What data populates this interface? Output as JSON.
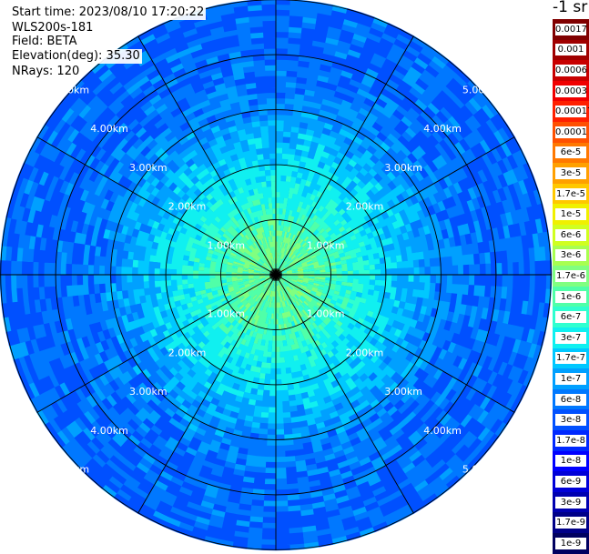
{
  "info": {
    "start_time": "Start time: 2023/08/10 17:20:22",
    "instrument": "WLS200s-181",
    "field": "Field: BETA",
    "elevation": "Elevation(deg): 35.30",
    "nrays": "NRays: 120"
  },
  "colorbar": {
    "units_label": "-1 sr",
    "labels": [
      "0.0017",
      "0.001",
      "0.0006",
      "0.0003",
      "0.00017",
      "0.0001",
      "6e-5",
      "3e-5",
      "1.7e-5",
      "1e-5",
      "6e-6",
      "3e-6",
      "1.7e-6",
      "1e-6",
      "6e-7",
      "3e-7",
      "1.7e-7",
      "1e-7",
      "6e-8",
      "3e-8",
      "1.7e-8",
      "1e-8",
      "6e-9",
      "3e-9",
      "1.7e-9",
      "1e-9"
    ],
    "colors": [
      "#800000",
      "#a00000",
      "#c80000",
      "#f00000",
      "#ff2000",
      "#ff5000",
      "#ff7800",
      "#ffa000",
      "#ffc800",
      "#f0f000",
      "#d0ff20",
      "#a8ff50",
      "#80ff80",
      "#50ffa8",
      "#30ffd0",
      "#10f0f0",
      "#00c8ff",
      "#00a0ff",
      "#0078ff",
      "#0050ff",
      "#0028ff",
      "#0000ff",
      "#0000d8",
      "#0000b0",
      "#000088",
      "#000060"
    ]
  },
  "chart_data": {
    "type": "heatmap",
    "projection": "polar",
    "range_unit": "km",
    "max_range_km": 5.0,
    "range_rings_km": [
      1,
      2,
      3,
      4,
      5
    ],
    "ring_labels": [
      "1.00km",
      "2.00km",
      "3.00km",
      "4.00km",
      "5.00km"
    ],
    "azimuth_spokes_deg": [
      0,
      30,
      60,
      90,
      120,
      150,
      180,
      210,
      240,
      270,
      300,
      330
    ],
    "nrays": 120,
    "typical_values_by_range_km": [
      {
        "range_km": 0.5,
        "value": "1.7e-6"
      },
      {
        "range_km": 1.0,
        "value": "1e-6"
      },
      {
        "range_km": 2.0,
        "value": "3e-7"
      },
      {
        "range_km": 3.0,
        "value": "1e-7"
      },
      {
        "range_km": 4.0,
        "value": "6e-8"
      },
      {
        "range_km": 5.0,
        "value": "6e-8"
      }
    ]
  }
}
